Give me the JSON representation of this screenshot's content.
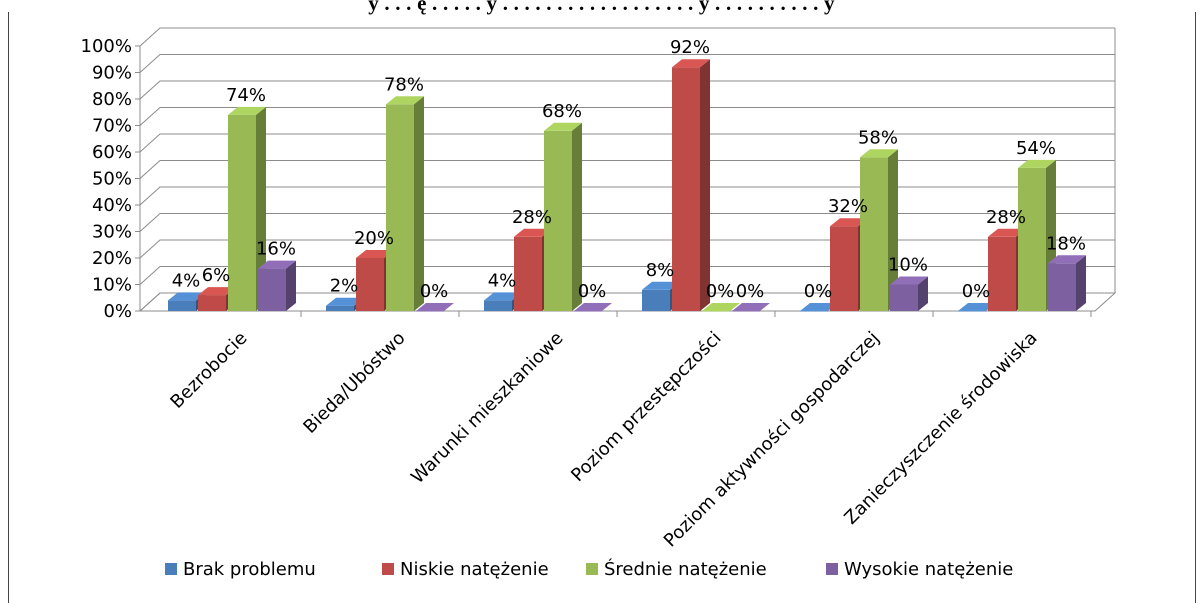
{
  "title": "y . . . ę . . . . . y . . . . . . . . . . . . . . . . . . y . . . . . . . . . . y",
  "chart_data": {
    "type": "bar",
    "categories": [
      "Bezrobocie",
      "Bieda/Ubóstwo",
      "Warunki mieszkaniowe",
      "Poziom przestępczości",
      "Poziom aktywności gospodarczej",
      "Zanieczyszczenie środowiska"
    ],
    "series": [
      {
        "name": "Brak problemu",
        "values": [
          4,
          2,
          4,
          8,
          0,
          0
        ],
        "color": "#4a7ebb"
      },
      {
        "name": "Niskie natężenie",
        "values": [
          6,
          20,
          28,
          92,
          32,
          28
        ],
        "color": "#be4b48"
      },
      {
        "name": "Średnie natężenie",
        "values": [
          74,
          78,
          68,
          0,
          58,
          54
        ],
        "color": "#98b954"
      },
      {
        "name": "Wysokie natężenie",
        "values": [
          16,
          0,
          0,
          0,
          10,
          18
        ],
        "color": "#7d60a0"
      }
    ],
    "data_labels": [
      [
        "4%",
        "6%",
        "74%",
        "16%"
      ],
      [
        "2%",
        "20%",
        "78%",
        "0%"
      ],
      [
        "4%",
        "28%",
        "68%",
        "0%"
      ],
      [
        "8%",
        "92%",
        "0%",
        "0%"
      ],
      [
        "0%",
        "32%",
        "58%",
        "10%"
      ],
      [
        "0%",
        "28%",
        "54%",
        "18%"
      ]
    ],
    "y_ticks": [
      "0%",
      "10%",
      "20%",
      "30%",
      "40%",
      "50%",
      "60%",
      "70%",
      "80%",
      "90%",
      "100%"
    ],
    "ylim": [
      0,
      100
    ],
    "grid": true,
    "legend": "bottom"
  }
}
